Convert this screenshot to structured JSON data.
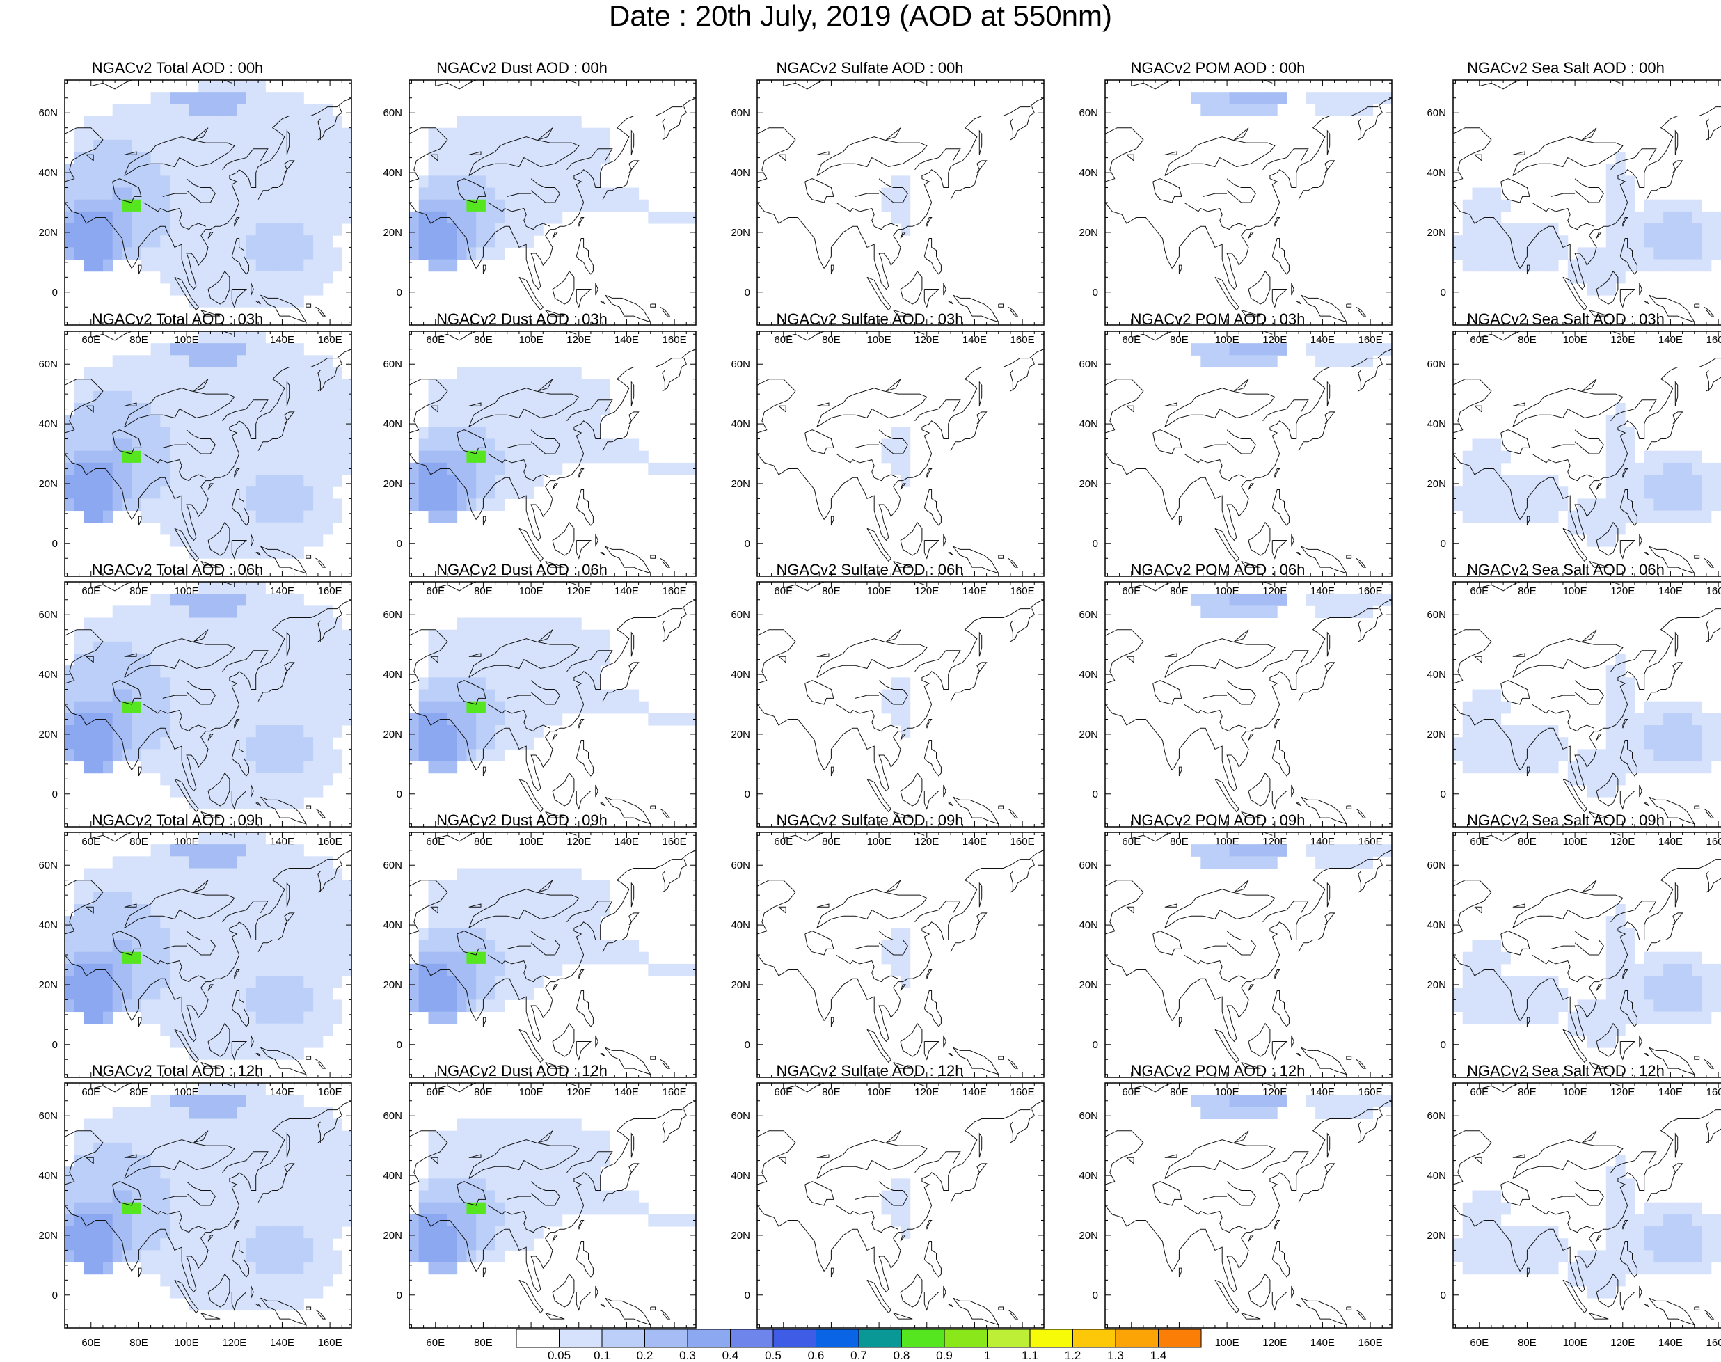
{
  "title": "Date : 20th July, 2019 (AOD at 550nm)",
  "axes": {
    "x_ticks": [
      "60E",
      "80E",
      "100E",
      "120E",
      "140E",
      "160E"
    ],
    "y_ticks": [
      "60N",
      "40N",
      "20N",
      "0"
    ]
  },
  "panel_rows": [
    {
      "hour": "00h",
      "titles": [
        "NGACv2 Total AOD : 00h",
        "NGACv2 Dust AOD : 00h",
        "NGACv2 Sulfate AOD : 00h",
        "NGACv2 POM AOD : 00h",
        "NGACv2 Sea Salt AOD : 00h"
      ]
    },
    {
      "hour": "03h",
      "titles": [
        "NGACv2 Total AOD : 03h",
        "NGACv2 Dust AOD : 03h",
        "NGACv2 Sulfate AOD : 03h",
        "NGACv2 POM AOD : 03h",
        "NGACv2 Sea Salt AOD : 03h"
      ]
    },
    {
      "hour": "06h",
      "titles": [
        "NGACv2 Total AOD : 06h",
        "NGACv2 Dust AOD : 06h",
        "NGACv2 Sulfate AOD : 06h",
        "NGACv2 POM AOD : 06h",
        "NGACv2 Sea Salt AOD : 06h"
      ]
    },
    {
      "hour": "09h",
      "titles": [
        "NGACv2 Total AOD : 09h",
        "NGACv2 Dust AOD : 09h",
        "NGACv2 Sulfate AOD : 09h",
        "NGACv2 POM AOD : 09h",
        "NGACv2 Sea Salt  AOD : 09h"
      ]
    },
    {
      "hour": "12h",
      "titles": [
        "NGACv2 Total AOD  : 12h",
        "NGACv2 Dust AOD : 12h",
        "NGACv2 Sulfate AOD : 12h",
        "NGACv2 POM  AOD : 12h",
        "NGACv2 Sea Salt  AOD : 12h"
      ]
    }
  ],
  "variables": [
    "Total",
    "Dust",
    "Sulfate",
    "POM",
    "Sea Salt"
  ],
  "colorbar": {
    "labels": [
      "0.05",
      "0.1",
      "0.2",
      "0.3",
      "0.4",
      "0.5",
      "0.6",
      "0.7",
      "0.8",
      "0.9",
      "1",
      "1.1",
      "1.2",
      "1.3",
      "1.4"
    ],
    "colors": [
      "#ffffff",
      "#d6e2fb",
      "#bccff8",
      "#a5bdf4",
      "#8ba8f0",
      "#6e86ec",
      "#3f5ce6",
      "#0a64e6",
      "#0a9896",
      "#55e620",
      "#8ae81a",
      "#bcef36",
      "#f8fb08",
      "#fcc808",
      "#fca406",
      "#fb7e06",
      "#fb5c0a",
      "#f52a16"
    ]
  }
}
